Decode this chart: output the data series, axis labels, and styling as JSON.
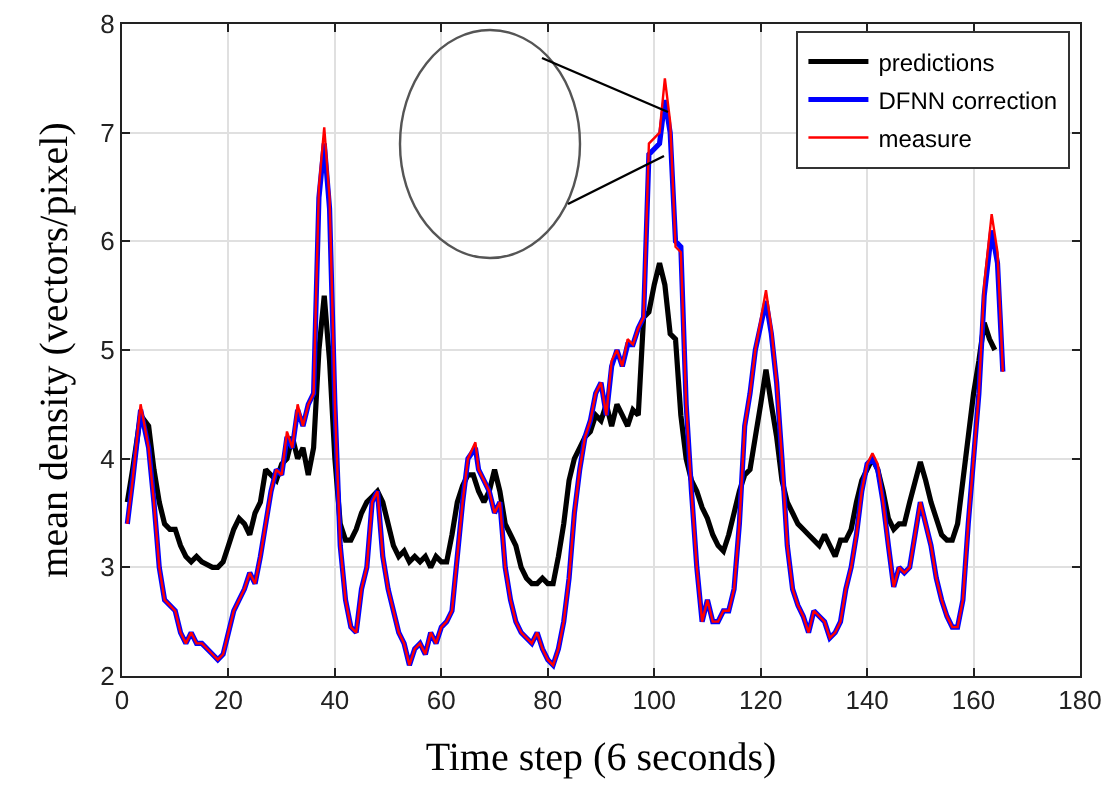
{
  "chart_data": {
    "type": "line",
    "xlabel": "Time step (6 seconds)",
    "ylabel": "mean density (vectors/pixel)",
    "xlim": [
      0,
      180
    ],
    "ylim": [
      2,
      8
    ],
    "xticks": [
      0,
      20,
      40,
      60,
      80,
      100,
      120,
      140,
      160,
      180
    ],
    "yticks": [
      2,
      3,
      4,
      5,
      6,
      7,
      8
    ],
    "grid": true,
    "legend": "top right",
    "marker": "none",
    "line_style": "solid",
    "x": [
      1,
      2,
      3.5,
      5,
      6,
      7,
      8,
      10,
      11,
      12,
      13,
      14,
      15,
      17,
      18,
      19,
      20,
      21,
      22,
      23,
      24,
      25,
      26,
      27,
      28,
      29,
      30,
      31,
      32,
      33,
      34,
      35,
      36,
      37,
      38,
      39,
      40,
      41,
      42,
      43,
      44,
      45,
      46,
      47,
      48,
      49,
      50,
      51,
      52,
      53,
      54,
      55,
      56,
      57,
      58,
      59,
      60,
      61,
      62,
      63,
      64,
      65,
      66.4,
      67,
      68,
      69,
      70,
      71,
      72,
      73,
      74,
      75,
      76,
      77,
      78,
      79,
      80,
      81,
      82,
      83,
      84,
      85,
      86,
      87,
      88,
      89,
      90,
      91,
      92,
      93,
      94,
      95,
      96,
      97,
      98,
      99,
      100,
      101,
      102,
      103,
      104,
      105,
      106,
      107,
      108,
      109,
      110,
      111,
      112,
      113,
      114,
      115,
      116,
      117,
      118,
      119,
      121,
      122,
      123,
      124,
      125,
      126,
      127,
      128,
      129,
      130,
      131,
      132,
      133,
      134,
      135,
      136,
      137,
      138,
      139,
      140,
      141,
      142,
      143,
      144,
      145,
      146,
      147,
      148,
      149,
      150,
      151,
      152,
      153,
      154,
      155,
      156,
      157,
      158,
      159,
      160,
      161,
      162,
      163.4,
      164.5,
      165.5
    ],
    "series": [
      {
        "name": "predictions",
        "color": "#000000",
        "x": [
          1,
          2,
          3.5,
          5,
          6,
          7,
          8,
          9,
          10,
          11,
          12,
          13,
          14,
          15,
          17,
          18,
          19,
          20,
          21,
          22,
          23,
          24,
          25,
          26,
          27,
          28,
          29,
          30,
          31,
          32,
          33,
          34,
          35,
          36,
          37,
          38,
          39,
          40,
          41,
          42,
          43,
          44,
          45,
          46,
          47,
          48,
          49,
          50,
          51,
          52,
          53,
          54,
          55,
          56,
          57,
          58,
          59,
          60,
          61,
          62,
          63,
          64,
          65,
          66,
          67,
          68,
          69,
          70,
          71,
          72,
          73,
          74,
          75,
          76,
          77,
          78,
          79,
          80,
          81,
          82,
          83,
          84,
          85,
          86,
          87,
          88,
          89,
          90,
          91,
          92,
          93,
          94,
          95,
          96,
          97,
          98,
          99,
          100,
          101,
          102,
          103,
          104,
          105,
          106,
          107,
          108,
          109,
          110,
          111,
          112,
          113,
          114,
          115,
          116,
          117,
          118,
          119,
          120,
          121,
          122,
          123,
          124,
          125,
          126,
          127,
          128,
          129,
          130,
          131,
          132,
          133,
          134,
          135,
          136,
          137,
          138,
          139,
          141,
          142,
          143,
          144,
          145,
          146,
          147,
          148,
          150,
          151,
          152,
          153,
          154,
          155,
          156,
          157,
          158,
          159,
          160,
          161,
          162,
          163,
          164
        ],
        "values": [
          3.6,
          3.9,
          4.4,
          4.3,
          3.9,
          3.6,
          3.4,
          3.35,
          3.35,
          3.2,
          3.1,
          3.05,
          3.1,
          3.05,
          3.0,
          3.0,
          3.05,
          3.2,
          3.35,
          3.45,
          3.4,
          3.3,
          3.5,
          3.6,
          3.9,
          3.85,
          3.8,
          3.95,
          4.0,
          4.2,
          4.0,
          4.1,
          3.85,
          4.1,
          5.0,
          5.5,
          4.9,
          4.0,
          3.4,
          3.25,
          3.25,
          3.35,
          3.5,
          3.6,
          3.65,
          3.7,
          3.6,
          3.4,
          3.2,
          3.1,
          3.15,
          3.05,
          3.1,
          3.05,
          3.1,
          3.0,
          3.1,
          3.05,
          3.05,
          3.3,
          3.6,
          3.75,
          3.85,
          3.85,
          3.7,
          3.6,
          3.7,
          3.9,
          3.7,
          3.4,
          3.3,
          3.2,
          3.0,
          2.9,
          2.85,
          2.85,
          2.9,
          2.85,
          2.85,
          3.1,
          3.4,
          3.8,
          4.0,
          4.1,
          4.2,
          4.25,
          4.4,
          4.35,
          4.5,
          4.3,
          4.5,
          4.4,
          4.3,
          4.45,
          4.4,
          5.3,
          5.35,
          5.6,
          5.8,
          5.6,
          5.15,
          5.1,
          4.4,
          4.0,
          3.8,
          3.7,
          3.55,
          3.45,
          3.3,
          3.2,
          3.15,
          3.3,
          3.5,
          3.7,
          3.85,
          3.9,
          4.2,
          4.5,
          4.82,
          4.5,
          4.2,
          3.8,
          3.6,
          3.5,
          3.4,
          3.35,
          3.3,
          3.25,
          3.2,
          3.3,
          3.2,
          3.1,
          3.25,
          3.25,
          3.35,
          3.6,
          3.8,
          4.0,
          3.9,
          3.7,
          3.45,
          3.35,
          3.4,
          3.4,
          3.6,
          3.97,
          3.8,
          3.6,
          3.45,
          3.3,
          3.25,
          3.25,
          3.4,
          3.8,
          4.2,
          4.6,
          4.9,
          5.25,
          5.1,
          5.0
        ]
      },
      {
        "name": "DFNN correction",
        "color": "#0000ff",
        "values": [
          3.4,
          3.8,
          4.45,
          4.1,
          3.6,
          3.0,
          2.7,
          2.6,
          2.4,
          2.3,
          2.4,
          2.3,
          2.3,
          2.2,
          2.15,
          2.2,
          2.4,
          2.6,
          2.7,
          2.8,
          2.95,
          2.85,
          3.1,
          3.4,
          3.7,
          3.9,
          3.85,
          4.2,
          4.1,
          4.45,
          4.3,
          4.5,
          4.6,
          6.4,
          6.9,
          6.3,
          4.5,
          3.2,
          2.7,
          2.45,
          2.4,
          2.8,
          3.0,
          3.6,
          3.7,
          3.1,
          2.8,
          2.6,
          2.4,
          2.3,
          2.1,
          2.25,
          2.3,
          2.2,
          2.4,
          2.3,
          2.45,
          2.5,
          2.6,
          3.1,
          3.6,
          4.0,
          4.1,
          3.9,
          3.8,
          3.7,
          3.5,
          3.6,
          3.0,
          2.7,
          2.5,
          2.4,
          2.35,
          2.3,
          2.4,
          2.25,
          2.15,
          2.1,
          2.25,
          2.5,
          2.9,
          3.5,
          3.9,
          4.2,
          4.35,
          4.6,
          4.7,
          4.4,
          4.85,
          5.0,
          4.85,
          5.05,
          5.05,
          5.2,
          5.3,
          6.8,
          6.85,
          6.9,
          7.3,
          7.0,
          6.0,
          5.95,
          4.5,
          3.7,
          3.0,
          2.5,
          2.7,
          2.5,
          2.5,
          2.6,
          2.6,
          2.8,
          3.4,
          4.3,
          4.6,
          5.0,
          5.45,
          5.15,
          4.7,
          4.0,
          3.2,
          2.8,
          2.65,
          2.55,
          2.4,
          2.6,
          2.55,
          2.5,
          2.35,
          2.4,
          2.5,
          2.8,
          3.0,
          3.3,
          3.7,
          3.95,
          4.0,
          3.9,
          3.6,
          3.2,
          2.82,
          3.0,
          2.95,
          3.0,
          3.3,
          3.6,
          3.4,
          3.2,
          2.9,
          2.7,
          2.55,
          2.45,
          2.45,
          2.7,
          3.4,
          4.0,
          4.6,
          5.5,
          6.1,
          5.8,
          4.8
        ]
      },
      {
        "name": "measure",
        "color": "#ff0000",
        "values": [
          3.4,
          3.8,
          4.5,
          4.1,
          3.6,
          3.0,
          2.7,
          2.6,
          2.4,
          2.3,
          2.4,
          2.3,
          2.3,
          2.2,
          2.15,
          2.2,
          2.4,
          2.6,
          2.7,
          2.8,
          2.95,
          2.85,
          3.1,
          3.4,
          3.7,
          3.9,
          3.85,
          4.25,
          4.1,
          4.5,
          4.3,
          4.5,
          4.6,
          6.5,
          7.05,
          6.4,
          4.5,
          3.2,
          2.7,
          2.45,
          2.4,
          2.8,
          3.0,
          3.6,
          3.7,
          3.1,
          2.8,
          2.6,
          2.4,
          2.3,
          2.1,
          2.25,
          2.3,
          2.2,
          2.4,
          2.3,
          2.45,
          2.5,
          2.6,
          3.1,
          3.6,
          4.0,
          4.15,
          3.9,
          3.8,
          3.7,
          3.5,
          3.6,
          3.0,
          2.7,
          2.5,
          2.4,
          2.35,
          2.3,
          2.4,
          2.25,
          2.15,
          2.1,
          2.25,
          2.5,
          2.9,
          3.5,
          3.9,
          4.2,
          4.35,
          4.6,
          4.7,
          4.4,
          4.9,
          5.0,
          4.85,
          5.1,
          5.05,
          5.2,
          5.3,
          6.9,
          6.95,
          7.0,
          7.5,
          7.1,
          5.95,
          5.9,
          4.5,
          3.7,
          3.0,
          2.5,
          2.7,
          2.5,
          2.5,
          2.6,
          2.6,
          2.8,
          3.4,
          4.3,
          4.6,
          5.0,
          5.55,
          5.2,
          4.7,
          4.0,
          3.2,
          2.8,
          2.65,
          2.55,
          2.4,
          2.6,
          2.55,
          2.5,
          2.35,
          2.4,
          2.5,
          2.8,
          3.0,
          3.3,
          3.7,
          3.95,
          4.05,
          3.95,
          3.6,
          3.2,
          2.82,
          3.0,
          2.95,
          3.0,
          3.3,
          3.6,
          3.4,
          3.2,
          2.9,
          2.7,
          2.55,
          2.45,
          2.45,
          2.7,
          3.4,
          4.0,
          4.6,
          5.6,
          6.25,
          5.9,
          4.8
        ]
      }
    ]
  }
}
